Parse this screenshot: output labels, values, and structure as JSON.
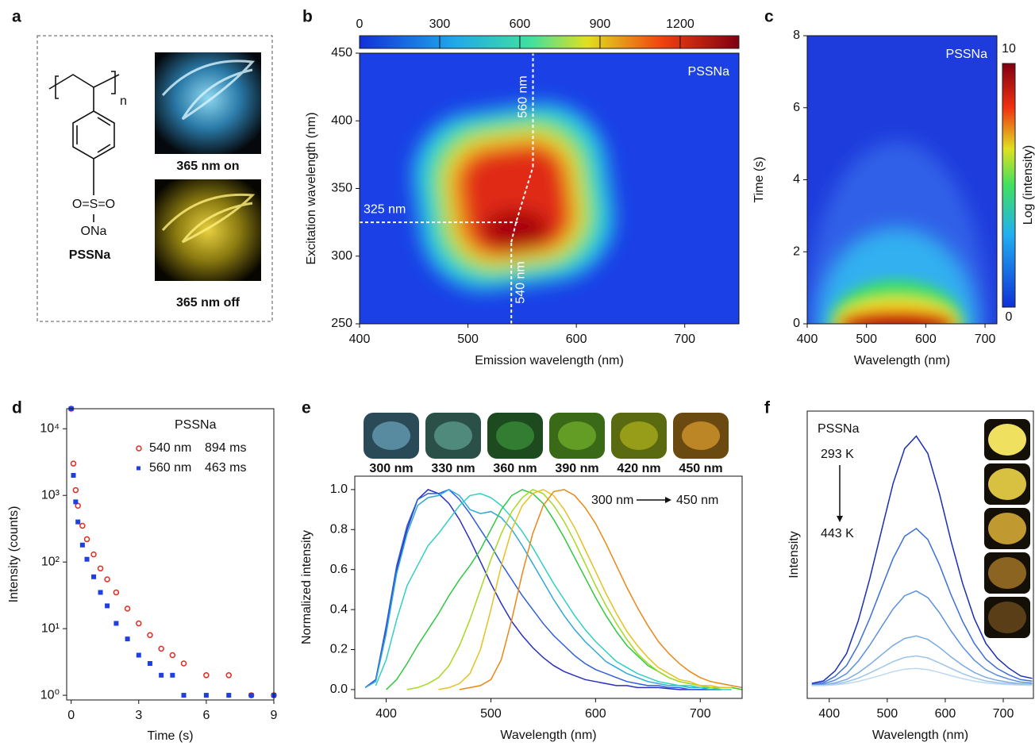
{
  "panel_a": {
    "panel": "a",
    "compound": "PSSNa",
    "structure": {
      "subscript": "n",
      "sulfonyl": "O=S=O",
      "salt": "ONa"
    },
    "images": [
      "365 nm on",
      "365 nm off"
    ]
  },
  "chart_data": [
    {
      "panel": "b",
      "type": "heatmap",
      "xlabel": "Emission wavelength (nm)",
      "ylabel": "Excitation wavelength (nm)",
      "xlim": [
        400,
        750
      ],
      "xticks": [
        400,
        500,
        600,
        700
      ],
      "ylim": [
        250,
        450
      ],
      "yticks": [
        250,
        300,
        350,
        400,
        450
      ],
      "colorbar": {
        "lim": [
          0,
          1420
        ],
        "ticks": [
          0,
          300,
          600,
          900,
          1200
        ]
      },
      "annotation": "PSSNa",
      "guides": [
        {
          "label": "325 nm",
          "excitation": 325
        },
        {
          "label": "540 nm",
          "emission": 540
        },
        {
          "label": "560 nm",
          "emission": 560
        }
      ]
    },
    {
      "panel": "c",
      "type": "heatmap",
      "xlabel": "Wavelength (nm)",
      "ylabel": "Time (s)",
      "xlim": [
        400,
        720
      ],
      "xticks": [
        400,
        500,
        600,
        700
      ],
      "ylim": [
        0,
        8
      ],
      "yticks": [
        0,
        2,
        4,
        6,
        8
      ],
      "colorbar": {
        "label": "Log (intensity)",
        "lim": [
          0,
          10
        ],
        "ticks": [
          0,
          10
        ]
      },
      "annotation": "PSSNa"
    },
    {
      "panel": "d",
      "type": "scatter",
      "xlabel": "Time (s)",
      "ylabel": "Intensity (counts)",
      "log_y": true,
      "xlim": [
        -0.2,
        9
      ],
      "xticks": [
        0,
        3,
        6,
        9
      ],
      "ylim": [
        0.85,
        20000
      ],
      "yticks": [
        {
          "value": 1,
          "label": "10⁰"
        },
        {
          "value": 10,
          "label": "10¹"
        },
        {
          "value": 100,
          "label": "10²"
        },
        {
          "value": 1000,
          "label": "10³"
        },
        {
          "value": 10000,
          "label": "10⁴"
        }
      ],
      "legend_title": "PSSNa",
      "x": [
        0,
        0.1,
        0.2,
        0.3,
        0.5,
        0.7,
        1,
        1.3,
        1.6,
        2,
        2.5,
        3,
        3.5,
        4,
        4.5,
        5,
        6,
        7,
        8,
        9
      ],
      "series": [
        {
          "name": "540 nm",
          "lifetime": "894 ms",
          "color": "#e8281e",
          "marker": "circle",
          "values": [
            20000,
            3000,
            1200,
            700,
            350,
            220,
            130,
            80,
            55,
            35,
            20,
            12,
            8,
            5,
            4,
            3,
            2,
            2,
            1,
            1
          ]
        },
        {
          "name": "560 nm",
          "lifetime": "463 ms",
          "color": "#1f3fe0",
          "marker": "square",
          "values": [
            20000,
            2000,
            800,
            400,
            180,
            110,
            60,
            35,
            22,
            12,
            7,
            4,
            3,
            2,
            2,
            1,
            1,
            1,
            1,
            1
          ]
        }
      ]
    },
    {
      "panel": "e",
      "type": "line",
      "xlabel": "Wavelength (nm)",
      "ylabel": "Normalized intensity",
      "xlim": [
        370,
        740
      ],
      "xticks": [
        400,
        500,
        600,
        700
      ],
      "ylim": [
        -0.044,
        1.067
      ],
      "yticks": [
        {
          "value": 0,
          "label": "0.0"
        },
        0.2,
        0.4,
        0.6,
        0.8,
        {
          "value": 1,
          "label": "1.0"
        }
      ],
      "images": [
        "300 nm",
        "330 nm",
        "360 nm",
        "390 nm",
        "420 nm",
        "450 nm"
      ],
      "annotation": {
        "from": "300 nm",
        "to": "450 nm"
      },
      "x": [
        380,
        390,
        400,
        410,
        420,
        430,
        440,
        450,
        460,
        470,
        480,
        490,
        500,
        510,
        520,
        530,
        540,
        550,
        560,
        570,
        580,
        590,
        600,
        610,
        620,
        630,
        640,
        650,
        660,
        670,
        680,
        690,
        700,
        710,
        720,
        730,
        740
      ],
      "series": [
        {
          "color": "#2a2fc0",
          "values": [
            0.01,
            0.05,
            0.3,
            0.6,
            0.8,
            0.95,
            1.0,
            0.98,
            0.93,
            0.85,
            0.75,
            0.64,
            0.53,
            0.43,
            0.34,
            0.27,
            0.21,
            0.16,
            0.12,
            0.09,
            0.07,
            0.05,
            0.04,
            0.03,
            0.02,
            0.02,
            0.01,
            0.01,
            0.01,
            0.005,
            0,
            0,
            0,
            0,
            0,
            null,
            null
          ]
        },
        {
          "color": "#2f5fd8",
          "values": [
            0.01,
            0.05,
            0.32,
            0.62,
            0.82,
            0.95,
            0.98,
            0.98,
            1.0,
            0.95,
            0.88,
            0.8,
            0.72,
            0.63,
            0.55,
            0.47,
            0.4,
            0.33,
            0.27,
            0.22,
            0.17,
            0.13,
            0.1,
            0.08,
            0.06,
            0.04,
            0.03,
            0.02,
            0.02,
            0.01,
            0.01,
            0,
            0,
            0,
            0,
            null,
            null
          ]
        },
        {
          "color": "#30a8d8",
          "values": [
            0.01,
            0.04,
            0.28,
            0.58,
            0.78,
            0.92,
            0.96,
            0.97,
            1.0,
            0.97,
            0.9,
            0.88,
            0.89,
            0.86,
            0.8,
            0.72,
            0.63,
            0.54,
            0.45,
            0.37,
            0.3,
            0.24,
            0.19,
            0.14,
            0.11,
            0.08,
            0.06,
            0.04,
            0.03,
            0.02,
            0.02,
            0.01,
            0.01,
            0,
            0,
            null,
            null
          ]
        },
        {
          "color": "#30d0c0",
          "values": [
            null,
            0.02,
            0.15,
            0.35,
            0.52,
            0.62,
            0.72,
            0.78,
            0.85,
            0.92,
            0.97,
            0.98,
            0.96,
            0.92,
            0.86,
            0.79,
            0.71,
            0.62,
            0.53,
            0.45,
            0.37,
            0.3,
            0.24,
            0.19,
            0.14,
            0.11,
            0.08,
            0.06,
            0.04,
            0.03,
            0.02,
            0.02,
            0.01,
            0.01,
            0,
            0,
            null
          ]
        },
        {
          "color": "#30c840",
          "values": [
            null,
            null,
            0.0,
            0.05,
            0.13,
            0.22,
            0.3,
            0.38,
            0.47,
            0.55,
            0.62,
            0.7,
            0.8,
            0.9,
            0.97,
            1.0,
            0.98,
            0.93,
            0.85,
            0.76,
            0.66,
            0.56,
            0.46,
            0.37,
            0.29,
            0.22,
            0.17,
            0.12,
            0.09,
            0.06,
            0.04,
            0.03,
            0.02,
            0.01,
            0.01,
            0.01,
            0.0
          ]
        },
        {
          "color": "#a8d820",
          "values": [
            null,
            null,
            null,
            null,
            0.0,
            0.01,
            0.03,
            0.06,
            0.12,
            0.22,
            0.35,
            0.5,
            0.65,
            0.78,
            0.89,
            0.96,
            1.0,
            0.98,
            0.92,
            0.84,
            0.74,
            0.63,
            0.52,
            0.42,
            0.33,
            0.25,
            0.18,
            0.13,
            0.09,
            0.06,
            0.04,
            0.03,
            0.02,
            0.01,
            0.01,
            null,
            null
          ]
        },
        {
          "color": "#e8c020",
          "values": [
            null,
            null,
            null,
            null,
            null,
            null,
            null,
            0.0,
            0.01,
            0.03,
            0.08,
            0.2,
            0.4,
            0.62,
            0.8,
            0.92,
            0.98,
            1.0,
            0.97,
            0.9,
            0.81,
            0.7,
            0.59,
            0.48,
            0.38,
            0.29,
            0.22,
            0.16,
            0.11,
            0.08,
            0.05,
            0.04,
            0.02,
            0.02,
            0.01,
            0.01,
            null
          ]
        },
        {
          "color": "#e88818",
          "values": [
            null,
            null,
            null,
            null,
            null,
            null,
            null,
            null,
            null,
            0.0,
            0.01,
            0.02,
            0.05,
            0.15,
            0.35,
            0.58,
            0.78,
            0.92,
            0.99,
            1.0,
            0.97,
            0.91,
            0.83,
            0.73,
            0.62,
            0.51,
            0.41,
            0.32,
            0.24,
            0.18,
            0.13,
            0.09,
            0.06,
            0.04,
            0.03,
            0.02,
            0.01
          ]
        }
      ]
    },
    {
      "panel": "f",
      "type": "line",
      "xlabel": "Wavelength (nm)",
      "ylabel": "Intensity",
      "xlim": [
        362,
        752
      ],
      "xticks": [
        400,
        500,
        600,
        700
      ],
      "ylim": [
        -0.05,
        1.1
      ],
      "annotation": "PSSNa",
      "temperature": {
        "from": "293 K",
        "to": "443 K"
      },
      "x": [
        370,
        390,
        410,
        430,
        450,
        470,
        490,
        510,
        530,
        550,
        570,
        590,
        610,
        630,
        650,
        670,
        690,
        710,
        730,
        750
      ],
      "series": [
        {
          "color": "#1a2db8",
          "values": [
            0.01,
            0.02,
            0.06,
            0.13,
            0.26,
            0.43,
            0.62,
            0.81,
            0.95,
            1.0,
            0.93,
            0.77,
            0.58,
            0.41,
            0.27,
            0.17,
            0.11,
            0.07,
            0.04,
            0.03
          ]
        },
        {
          "color": "#3a6fd8",
          "values": [
            0.006,
            0.013,
            0.038,
            0.082,
            0.164,
            0.271,
            0.391,
            0.51,
            0.599,
            0.63,
            0.586,
            0.485,
            0.365,
            0.258,
            0.17,
            0.107,
            0.069,
            0.044,
            0.025,
            0.019
          ]
        },
        {
          "color": "#5a8fe0",
          "values": [
            0.004,
            0.008,
            0.023,
            0.049,
            0.099,
            0.163,
            0.236,
            0.308,
            0.361,
            0.38,
            0.353,
            0.293,
            0.22,
            0.156,
            0.103,
            0.065,
            0.042,
            0.027,
            0.015,
            0.011
          ]
        },
        {
          "color": "#7aaae6",
          "values": [
            0.002,
            0.004,
            0.012,
            0.026,
            0.052,
            0.086,
            0.124,
            0.162,
            0.19,
            0.2,
            0.186,
            0.154,
            0.116,
            0.082,
            0.054,
            0.034,
            0.022,
            0.014,
            0.008,
            0.006
          ]
        },
        {
          "color": "#9cc4ec",
          "values": [
            0.001,
            0.002,
            0.007,
            0.016,
            0.031,
            0.052,
            0.074,
            0.097,
            0.114,
            0.12,
            0.112,
            0.092,
            0.07,
            0.049,
            0.032,
            0.02,
            0.013,
            0.008,
            0.005,
            0.004
          ]
        },
        {
          "color": "#bcd8f2",
          "values": [
            0.001,
            0.001,
            0.004,
            0.009,
            0.018,
            0.03,
            0.043,
            0.057,
            0.067,
            0.07,
            0.065,
            0.054,
            0.041,
            0.029,
            0.019,
            0.012,
            0.008,
            0.005,
            0.003,
            0.002
          ]
        }
      ]
    }
  ]
}
